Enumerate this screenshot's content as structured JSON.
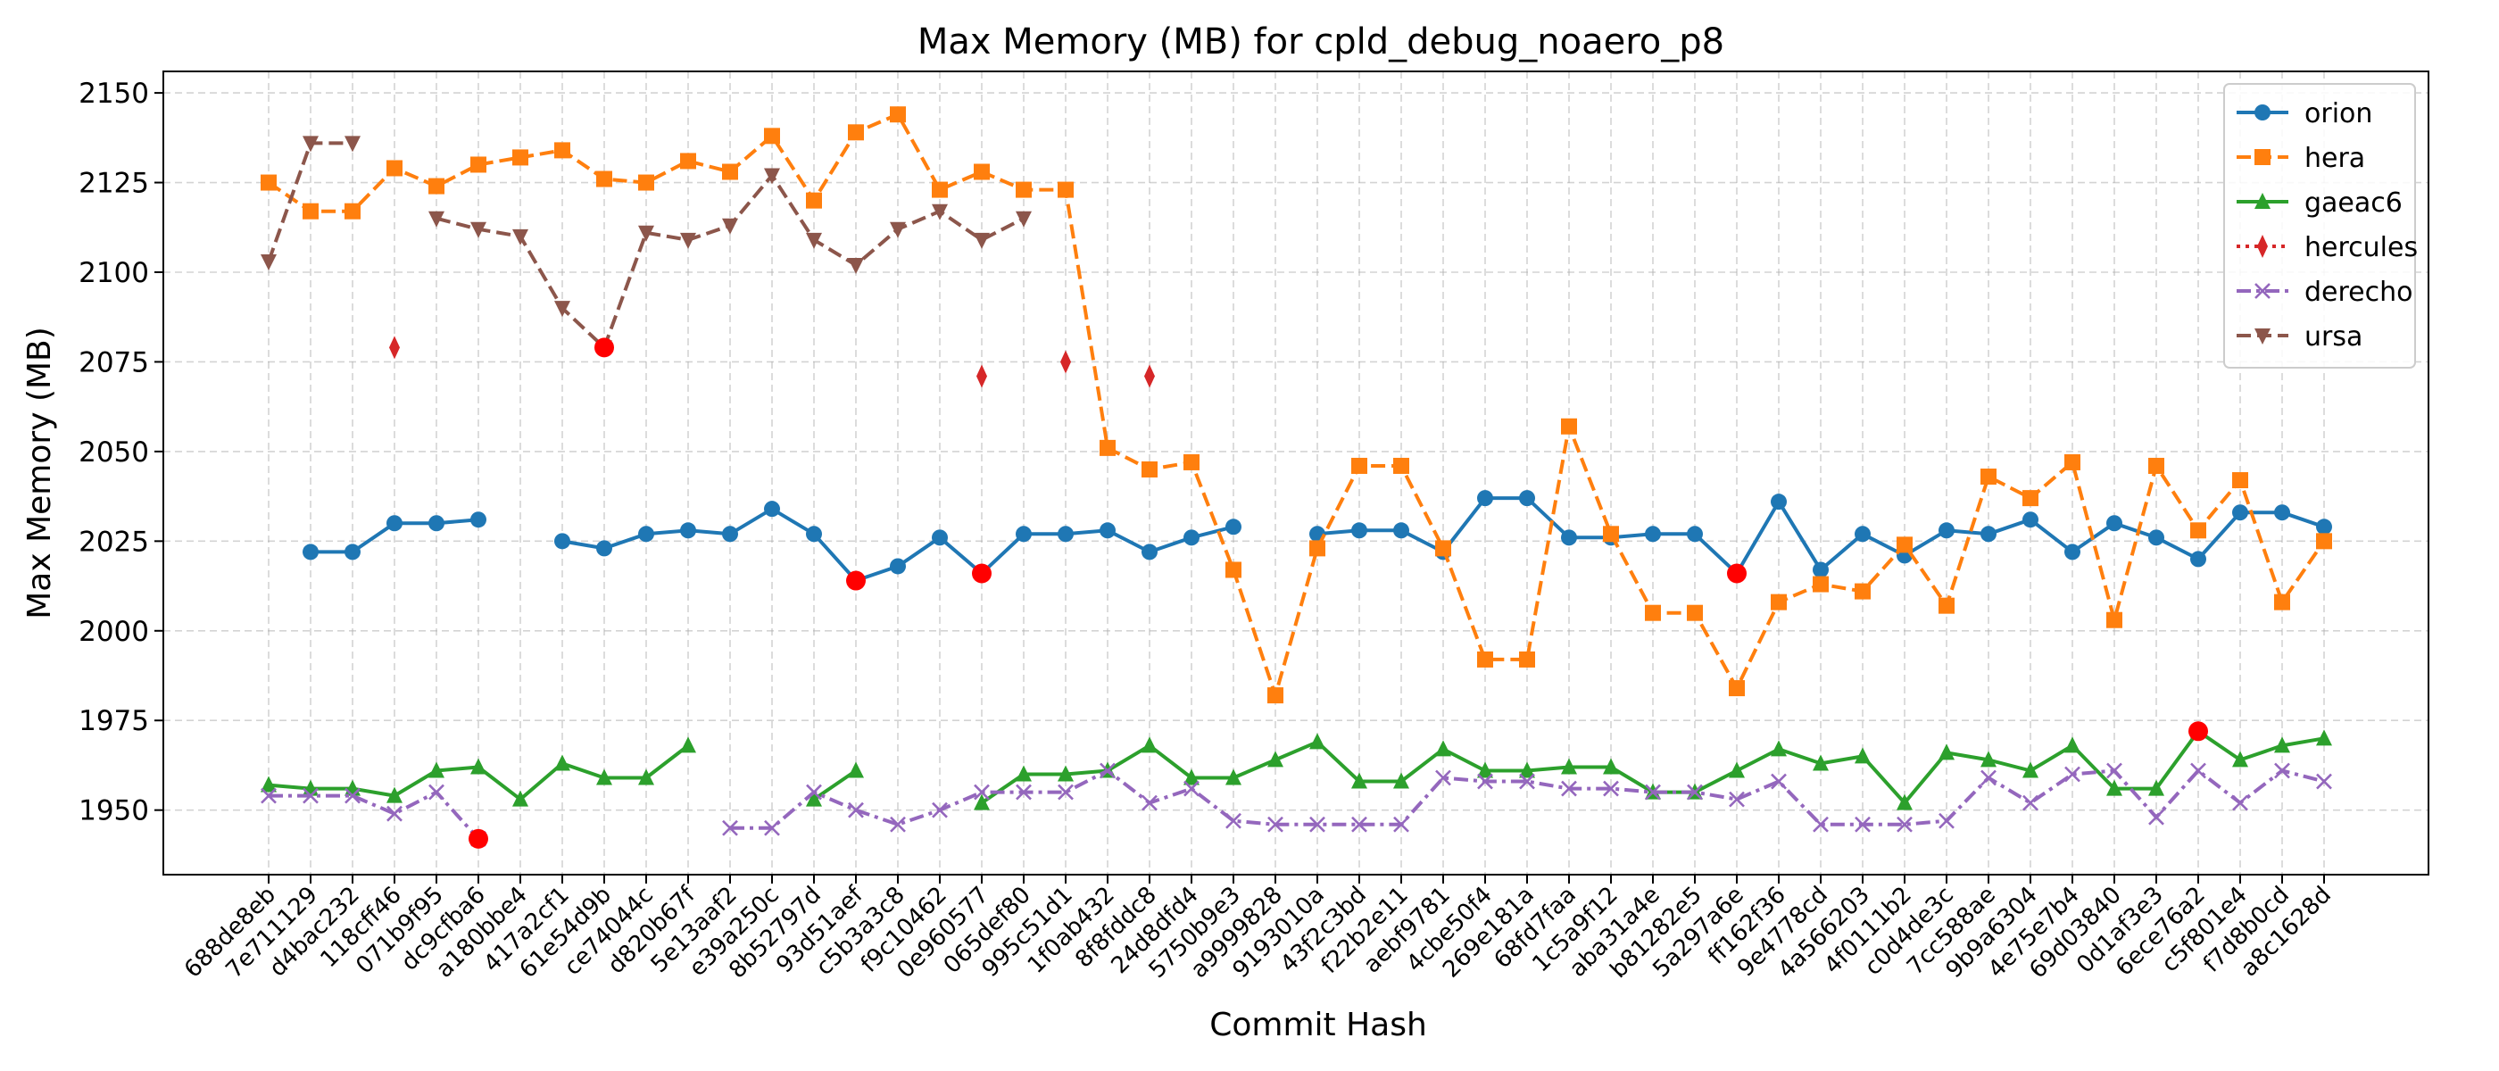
{
  "chart_data": {
    "type": "line",
    "title": "Max Memory (MB) for cpld_debug_noaero_p8",
    "xlabel": "Commit Hash",
    "ylabel": "Max Memory (MB)",
    "ylim": [
      1932,
      2156
    ],
    "yticks": [
      1950,
      1975,
      2000,
      2025,
      2050,
      2075,
      2100,
      2125,
      2150
    ],
    "grid": true,
    "legend_position": "top-right",
    "categories": [
      "688de8eb",
      "7e711129",
      "d4bac232",
      "118cff46",
      "071b9f95",
      "dc9cfba6",
      "a180bbe4",
      "417a2cf1",
      "61e54d9b",
      "ce74044c",
      "d820b67f",
      "5e13aaf2",
      "e39a250c",
      "8b52797d",
      "93d51aef",
      "c5b3a3c8",
      "f9c10462",
      "0e960577",
      "065def80",
      "995c51d1",
      "1f0ab432",
      "8f8fddc8",
      "24d8dfd4",
      "5750b9e3",
      "a9999828",
      "9193010a",
      "43f2c3bd",
      "f22b2e11",
      "aebf9781",
      "4cbe50f4",
      "269e181a",
      "68fd7faa",
      "1c5a9f12",
      "aba31a4e",
      "b81282e5",
      "5a297a6e",
      "ff162f36",
      "9e4778cd",
      "4a566203",
      "4f0111b2",
      "c0d4de3c",
      "7cc588ae",
      "9b9a6304",
      "4e75e7b4",
      "69d03840",
      "0d1af3e3",
      "6ece76a2",
      "c5f801e4",
      "f7d8b0cd",
      "a8c1628d"
    ],
    "series": [
      {
        "name": "orion",
        "color": "#1f77b4",
        "dash": "solid",
        "marker": "circle",
        "values": [
          null,
          2022,
          2022,
          2030,
          2030,
          2031,
          null,
          2025,
          2023,
          2027,
          2028,
          2027,
          2034,
          2027,
          2014,
          2018,
          2026,
          2016,
          2027,
          2027,
          2028,
          2022,
          2026,
          2029,
          null,
          2027,
          2028,
          2028,
          2022,
          2037,
          2037,
          2026,
          2026,
          2027,
          2027,
          2016,
          2036,
          2017,
          2027,
          2021,
          2028,
          2027,
          2031,
          2022,
          2030,
          2026,
          2020,
          2033,
          2033,
          2029
        ]
      },
      {
        "name": "hera",
        "color": "#ff7f0e",
        "dash": "dashed",
        "marker": "square",
        "values": [
          2125,
          2117,
          2117,
          2129,
          2124,
          2130,
          2132,
          2134,
          2126,
          2125,
          2131,
          2128,
          2138,
          2120,
          2139,
          2144,
          2123,
          2128,
          2123,
          2123,
          2051,
          2045,
          2047,
          2017,
          1982,
          2023,
          2046,
          2046,
          2023,
          1992,
          1992,
          2057,
          2027,
          2005,
          2005,
          1984,
          2008,
          2013,
          2011,
          2024,
          2007,
          2043,
          2037,
          2047,
          2003,
          2046,
          2028,
          2042,
          2008,
          2025
        ]
      },
      {
        "name": "gaeac6",
        "color": "#2ca02c",
        "dash": "solid",
        "marker": "triangle-up",
        "values": [
          1957,
          1956,
          1956,
          1954,
          1961,
          1962,
          1953,
          1963,
          1959,
          1959,
          1968,
          null,
          null,
          1953,
          1961,
          null,
          null,
          1952,
          1960,
          1960,
          1961,
          1968,
          1959,
          1959,
          1964,
          1969,
          1958,
          1958,
          1967,
          1961,
          1961,
          1962,
          1962,
          1955,
          1955,
          1961,
          1967,
          1963,
          1965,
          1952,
          1966,
          1964,
          1961,
          1968,
          1956,
          1956,
          1972,
          1964,
          1968,
          1970
        ]
      },
      {
        "name": "hercules",
        "color": "#d62728",
        "dash": "dotted",
        "marker": "diamond",
        "values": [
          null,
          null,
          null,
          2079,
          null,
          null,
          null,
          null,
          null,
          null,
          null,
          null,
          null,
          null,
          null,
          null,
          null,
          2071,
          null,
          2075,
          null,
          2071,
          null,
          null,
          null,
          null,
          null,
          null,
          null,
          null,
          null,
          null,
          null,
          null,
          null,
          null,
          null,
          null,
          null,
          null,
          null,
          null,
          null,
          null,
          null,
          null,
          null,
          null,
          null,
          null
        ]
      },
      {
        "name": "derecho",
        "color": "#9467bd",
        "dash": "dashdot",
        "marker": "x",
        "values": [
          1954,
          1954,
          1954,
          1949,
          1955,
          1942,
          null,
          null,
          null,
          null,
          null,
          1945,
          1945,
          1955,
          1950,
          1946,
          1950,
          1955,
          1955,
          1955,
          1961,
          1952,
          1956,
          1947,
          1946,
          1946,
          1946,
          1946,
          1959,
          1958,
          1958,
          1956,
          1956,
          1955,
          1955,
          1953,
          1958,
          1946,
          1946,
          1946,
          1947,
          1959,
          1952,
          1960,
          1961,
          1948,
          1961,
          1952,
          1961,
          1958
        ]
      },
      {
        "name": "ursa",
        "color": "#8c564b",
        "dash": "dashed",
        "marker": "triangle-down",
        "values": [
          2103,
          2136,
          2136,
          null,
          2115,
          2112,
          2110,
          2090,
          2079,
          2111,
          2109,
          2113,
          2127,
          2109,
          2102,
          2112,
          2117,
          2109,
          2115,
          null,
          null,
          null,
          null,
          null,
          null,
          null,
          null,
          null,
          null,
          null,
          null,
          null,
          null,
          null,
          null,
          null,
          null,
          null,
          null,
          null,
          null,
          null,
          null,
          null,
          null,
          null,
          null,
          null,
          null,
          null
        ]
      }
    ],
    "highlights": [
      {
        "series": "derecho",
        "category": "dc9cfba6",
        "value": 1942
      },
      {
        "series": "ursa",
        "category": "61e54d9b",
        "value": 2079
      },
      {
        "series": "orion",
        "category": "93d51aef",
        "value": 2014
      },
      {
        "series": "orion",
        "category": "0e960577",
        "value": 2016
      },
      {
        "series": "orion",
        "category": "5a297a6e",
        "value": 2016
      },
      {
        "series": "gaeac6",
        "category": "6ece76a2",
        "value": 1972
      }
    ],
    "highlight_color": "#ff0000"
  }
}
